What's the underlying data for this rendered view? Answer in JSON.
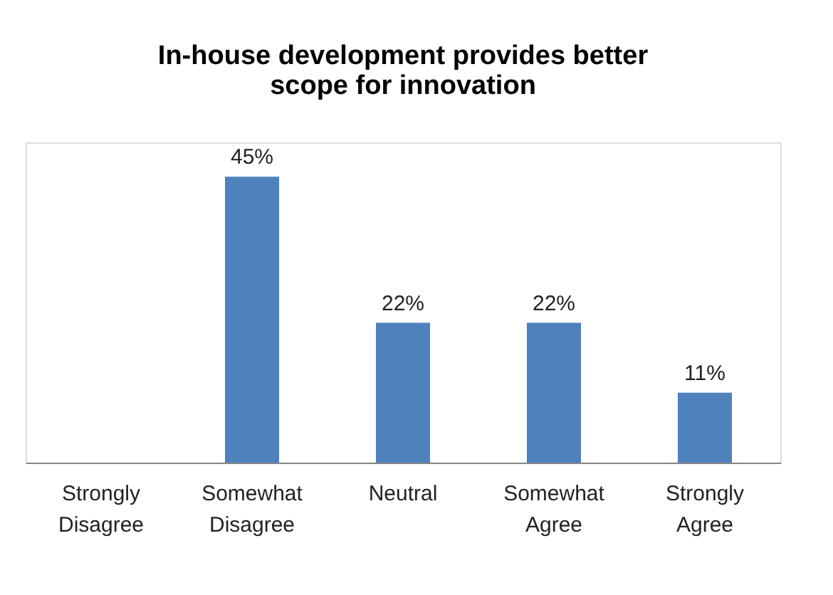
{
  "chart_data": {
    "type": "bar",
    "title": "In-house development provides better scope for innovation",
    "categories": [
      "Strongly Disagree",
      "Somewhat Disagree",
      "Neutral",
      "Somewhat Agree",
      "Strongly Agree"
    ],
    "values": [
      null,
      45,
      22,
      22,
      11
    ],
    "value_labels": [
      null,
      "45%",
      "22%",
      "22%",
      "11%"
    ],
    "color": "#4f81bd",
    "grid": false
  }
}
